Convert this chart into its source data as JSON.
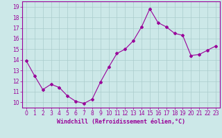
{
  "x": [
    0,
    1,
    2,
    3,
    4,
    5,
    6,
    7,
    8,
    9,
    10,
    11,
    12,
    13,
    14,
    15,
    16,
    17,
    18,
    19,
    20,
    21,
    22,
    23
  ],
  "y": [
    13.9,
    12.5,
    11.2,
    11.7,
    11.4,
    10.6,
    10.1,
    9.9,
    10.3,
    11.9,
    13.3,
    14.6,
    15.0,
    15.8,
    17.1,
    18.8,
    17.5,
    17.1,
    16.5,
    16.3,
    14.4,
    14.5,
    14.9,
    15.3
  ],
  "line_color": "#990099",
  "marker": "D",
  "marker_size": 2,
  "bg_color": "#cce8e8",
  "grid_color": "#aacccc",
  "xlabel": "Windchill (Refroidissement éolien,°C)",
  "xlabel_color": "#990099",
  "tick_color": "#990099",
  "ylim": [
    9.5,
    19.5
  ],
  "yticks": [
    10,
    11,
    12,
    13,
    14,
    15,
    16,
    17,
    18,
    19
  ],
  "xticks": [
    0,
    1,
    2,
    3,
    4,
    5,
    6,
    7,
    8,
    9,
    10,
    11,
    12,
    13,
    14,
    15,
    16,
    17,
    18,
    19,
    20,
    21,
    22,
    23
  ],
  "xlim": [
    -0.5,
    23.5
  ]
}
